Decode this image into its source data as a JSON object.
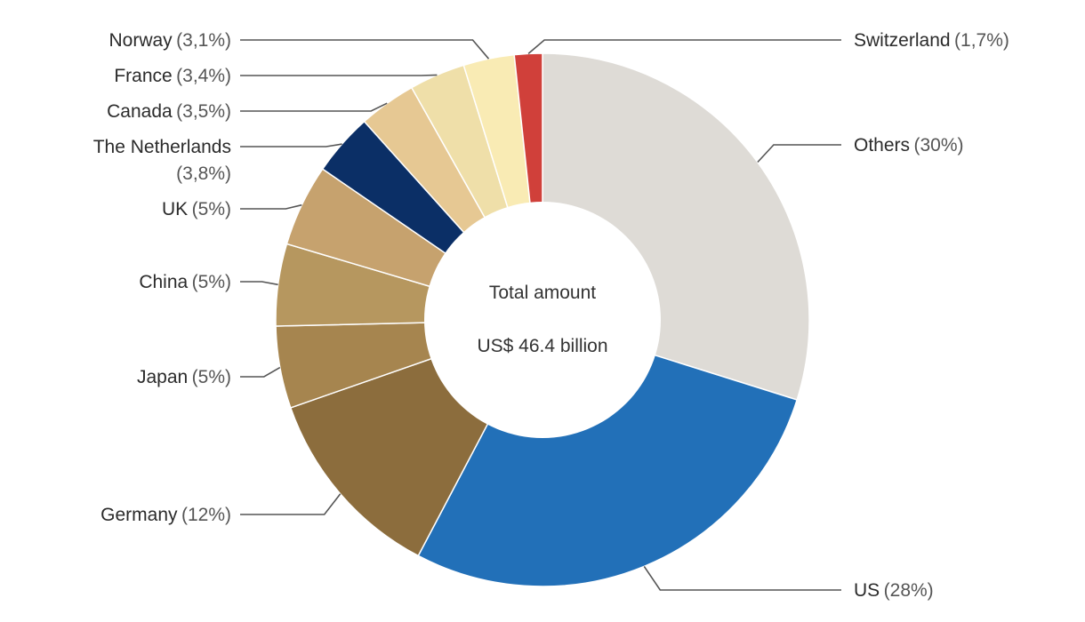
{
  "chart_data": {
    "type": "pie",
    "variant": "donut",
    "center_label": {
      "line1": "Total amount",
      "line2": "US$ 46.4 billion"
    },
    "slices": [
      {
        "name": "Others",
        "pct_label": "(30%)",
        "value": 30,
        "color": "#DEDBD6"
      },
      {
        "name": "US",
        "pct_label": "(28%)",
        "value": 28,
        "color": "#2270B8"
      },
      {
        "name": "Germany",
        "pct_label": "(12%)",
        "value": 12,
        "color": "#8C6D3D"
      },
      {
        "name": "Japan",
        "pct_label": "(5%)",
        "value": 5,
        "color": "#A6854F"
      },
      {
        "name": "China",
        "pct_label": "(5%)",
        "value": 5,
        "color": "#B6975F"
      },
      {
        "name": "UK",
        "pct_label": "(5%)",
        "value": 5,
        "color": "#C6A26E"
      },
      {
        "name": "The Netherlands",
        "pct_label": "(3,8%)",
        "value": 3.8,
        "color": "#0B2F66"
      },
      {
        "name": "Canada",
        "pct_label": "(3,5%)",
        "value": 3.5,
        "color": "#E6C893"
      },
      {
        "name": "France",
        "pct_label": "(3,4%)",
        "value": 3.4,
        "color": "#EFDFA9"
      },
      {
        "name": "Norway",
        "pct_label": "(3,1%)",
        "value": 3.1,
        "color": "#F9EBB4"
      },
      {
        "name": "Switzerland",
        "pct_label": "(1,7%)",
        "value": 1.7,
        "color": "#D0403A"
      }
    ]
  }
}
